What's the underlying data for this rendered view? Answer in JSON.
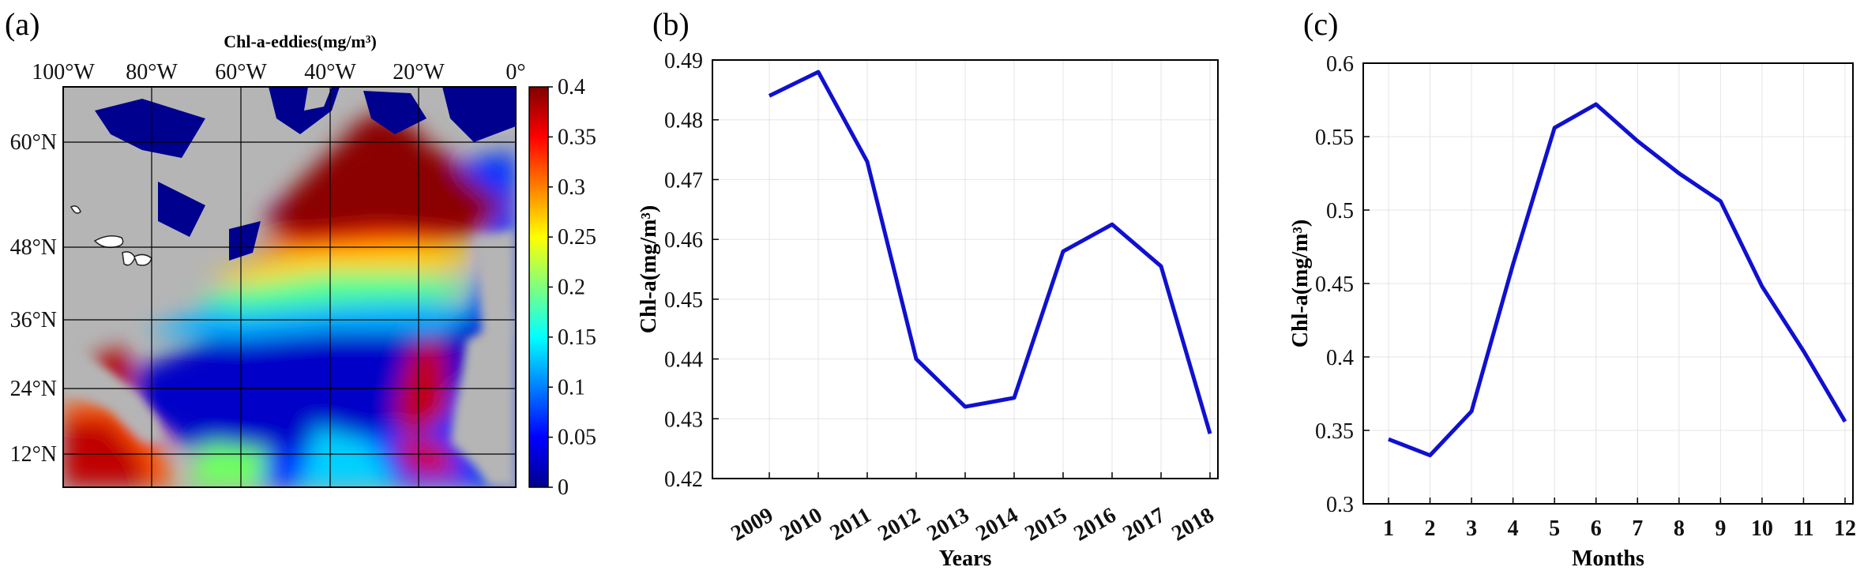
{
  "panel_labels": [
    "(a)",
    "(b)",
    "(c)"
  ],
  "map": {
    "title": "Chl-a-eddies(mg/m³)",
    "lon_labels": [
      "100°W",
      "80°W",
      "60°W",
      "40°W",
      "20°W",
      "0°"
    ],
    "lat_labels": [
      "60°N",
      "48°N",
      "36°N",
      "24°N",
      "12°N"
    ],
    "colorbar": {
      "ticks": [
        "0.4",
        "0.35",
        "0.3",
        "0.25",
        "0.2",
        "0.15",
        "0.1",
        "0.05",
        "0"
      ],
      "colormap": "jet",
      "range": [
        0,
        0.4
      ]
    },
    "colors": {
      "land": "#b5b5b5",
      "high": "#8b0000",
      "low": "#00008f",
      "lake": "#ffffff"
    }
  },
  "chart_data": [
    {
      "type": "line",
      "categories": [
        "2009",
        "2010",
        "2011",
        "2012",
        "2013",
        "2014",
        "2015",
        "2016",
        "2017",
        "2018"
      ],
      "series": [
        {
          "values": [
            0.484,
            0.488,
            0.473,
            0.44,
            0.432,
            0.4335,
            0.458,
            0.4625,
            0.4555,
            0.4275
          ],
          "color": "#1010d0"
        }
      ],
      "xlabel": "Years",
      "ylabel": "Chl-a(mg/m³)",
      "ylim": [
        0.42,
        0.49
      ],
      "yticks": [
        "0.42",
        "0.43",
        "0.44",
        "0.45",
        "0.46",
        "0.47",
        "0.48",
        "0.49"
      ],
      "grid": true
    },
    {
      "type": "line",
      "categories": [
        "1",
        "2",
        "3",
        "4",
        "5",
        "6",
        "7",
        "8",
        "9",
        "10",
        "11",
        "12"
      ],
      "series": [
        {
          "values": [
            0.344,
            0.333,
            0.363,
            0.463,
            0.556,
            0.572,
            0.547,
            0.525,
            0.506,
            0.448,
            0.404,
            0.356
          ],
          "color": "#1010d0"
        }
      ],
      "xlabel": "Months",
      "ylabel": "Chl-a(mg/m³)",
      "ylim": [
        0.3,
        0.6
      ],
      "yticks": [
        "0.3",
        "0.35",
        "0.4",
        "0.45",
        "0.5",
        "0.55",
        "0.6"
      ],
      "grid": true
    }
  ]
}
